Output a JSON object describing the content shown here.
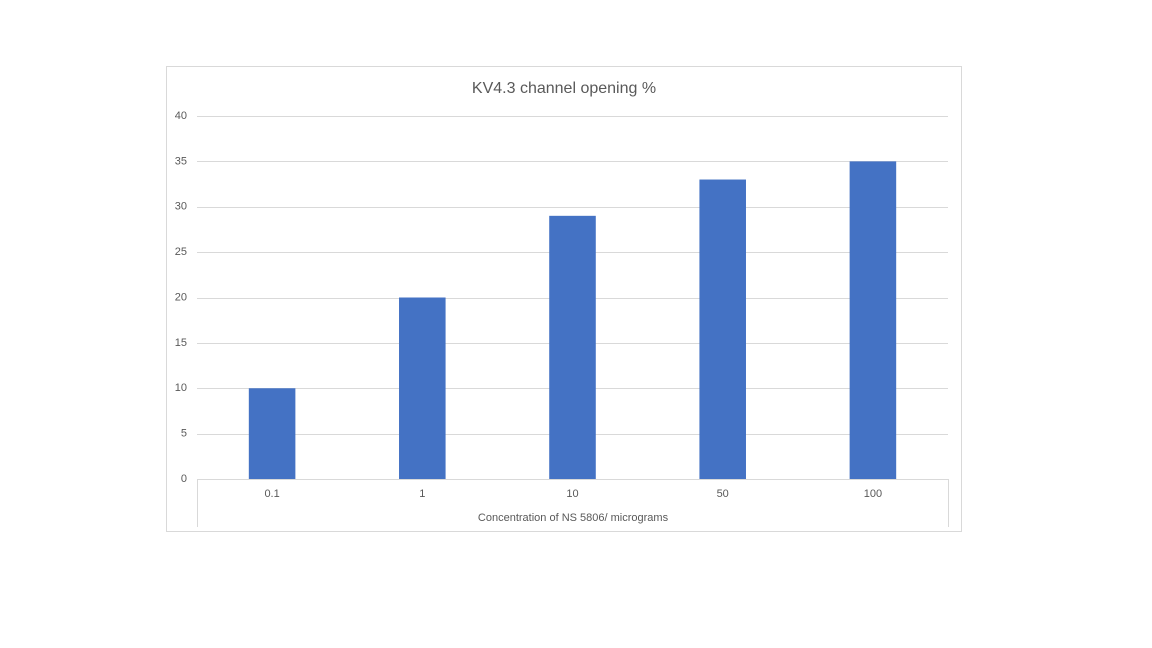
{
  "chart_data": {
    "type": "bar",
    "title": "KV4.3 channel opening %",
    "x_label": "Concentration of NS 5806/ micrograms",
    "categories": [
      "0.1",
      "1",
      "10",
      "50",
      "100"
    ],
    "values": [
      10,
      20,
      29,
      33,
      35
    ],
    "color": "#4472c4",
    "ylim": [
      0,
      40
    ],
    "yticks": [
      0,
      5,
      10,
      15,
      20,
      25,
      30,
      35,
      40
    ],
    "grid": true
  }
}
